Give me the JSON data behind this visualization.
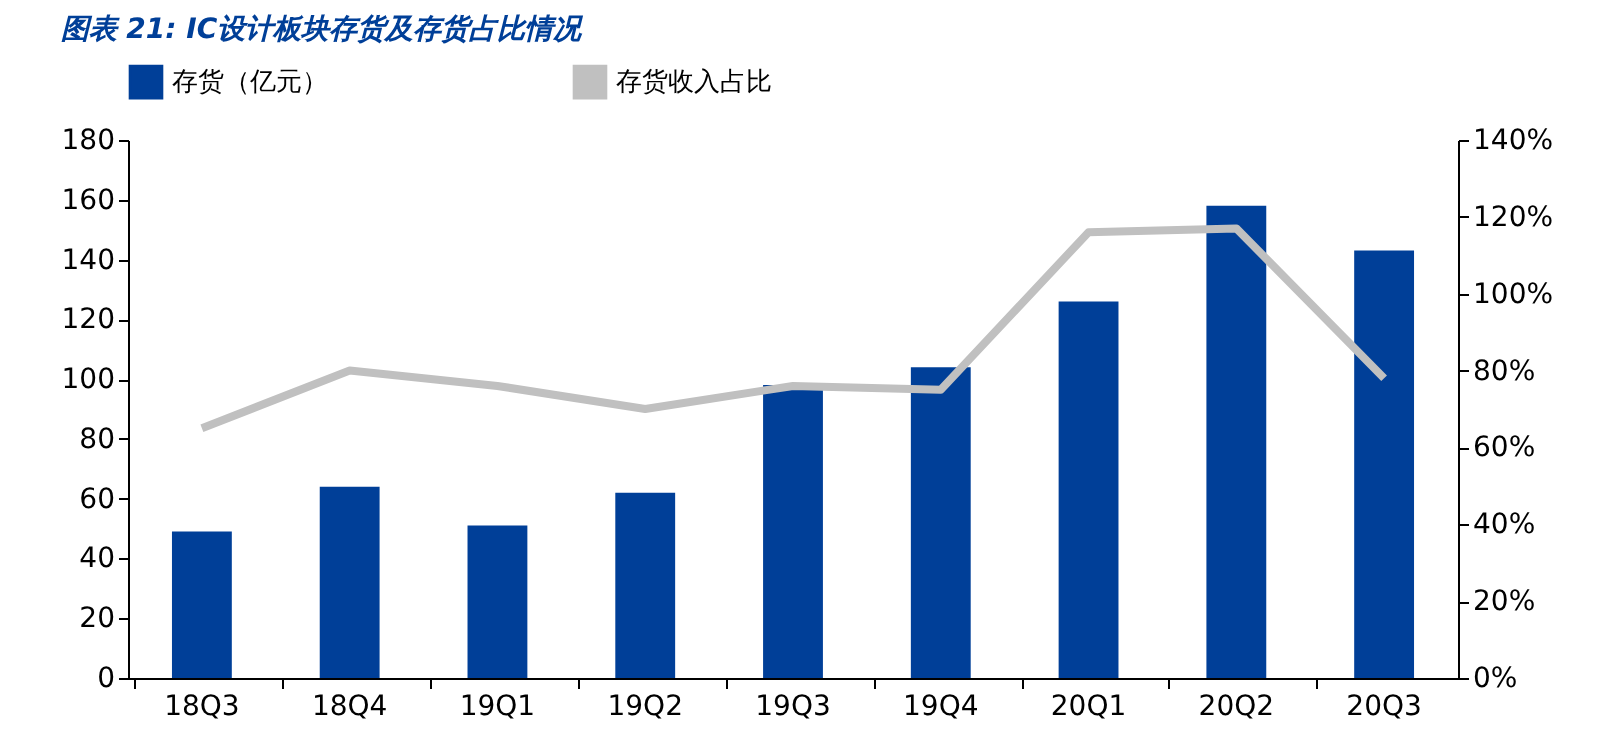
{
  "chart_data": {
    "type": "bar",
    "title": "图表 21:  IC设计板块存货及存货占比情况",
    "categories": [
      "18Q3",
      "18Q4",
      "19Q1",
      "19Q2",
      "19Q3",
      "19Q4",
      "20Q1",
      "20Q2",
      "20Q3"
    ],
    "series": [
      {
        "name": "存货（亿元）",
        "color": "#003f98",
        "values": [
          49,
          64,
          51,
          62,
          98,
          104,
          126,
          158,
          143
        ]
      },
      {
        "name": "存货收入占比",
        "type": "line",
        "axis": "y2",
        "color": "#c0c0c0",
        "values": [
          65,
          80,
          76,
          70,
          76,
          75,
          116,
          117,
          78
        ]
      }
    ],
    "ylim": [
      0,
      180
    ],
    "yticks": [
      0,
      20,
      40,
      60,
      80,
      100,
      120,
      140,
      160,
      180
    ],
    "y2lim": [
      0,
      140
    ],
    "y2ticks": [
      {
        "value": 0,
        "label": "0%"
      },
      {
        "value": 20,
        "label": "20%"
      },
      {
        "value": 40,
        "label": "40%"
      },
      {
        "value": 60,
        "label": "60%"
      },
      {
        "value": 80,
        "label": "80%"
      },
      {
        "value": 100,
        "label": "100%"
      },
      {
        "value": 120,
        "label": "120%"
      },
      {
        "value": 140,
        "label": "140%"
      }
    ],
    "grid": false,
    "legend": "top",
    "line_style": "solid",
    "marker": "none"
  }
}
